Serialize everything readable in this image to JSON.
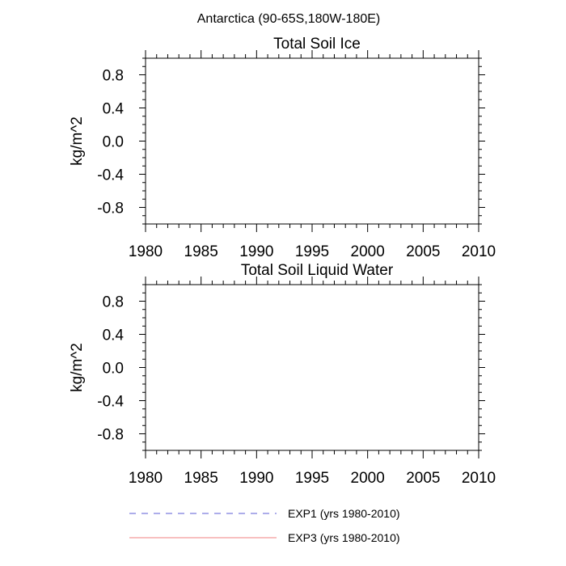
{
  "figure_title": "Antarctica (90-65S,180W-180E)",
  "chart_data": [
    {
      "type": "line",
      "title": "Total Soil Ice",
      "xlabel": "",
      "ylabel": "kg/m^2",
      "xlim": [
        1980,
        2010
      ],
      "ylim": [
        -1.0,
        1.0
      ],
      "x_ticks": [
        1980,
        1985,
        1990,
        1995,
        2000,
        2005,
        2010
      ],
      "x_tick_labels": [
        "1980",
        "1985",
        "1990",
        "1995",
        "2000",
        "2005",
        "2010"
      ],
      "y_ticks": [
        0.8,
        0.4,
        0.0,
        -0.4,
        -0.8
      ],
      "y_tick_labels": [
        "0.8",
        "0.4",
        "0.0",
        "-0.4",
        "-0.8"
      ],
      "grid": false,
      "series": [
        {
          "name": "EXP1 (yrs 1980-2010)",
          "values": []
        },
        {
          "name": "EXP3 (yrs 1980-2010)",
          "values": []
        }
      ]
    },
    {
      "type": "line",
      "title": "Total Soil Liquid Water",
      "xlabel": "",
      "ylabel": "kg/m^2",
      "xlim": [
        1980,
        2010
      ],
      "ylim": [
        -1.0,
        1.0
      ],
      "x_ticks": [
        1980,
        1985,
        1990,
        1995,
        2000,
        2005,
        2010
      ],
      "x_tick_labels": [
        "1980",
        "1985",
        "1990",
        "1995",
        "2000",
        "2005",
        "2010"
      ],
      "y_ticks": [
        0.8,
        0.4,
        0.0,
        -0.4,
        -0.8
      ],
      "y_tick_labels": [
        "0.8",
        "0.4",
        "0.0",
        "-0.4",
        "-0.8"
      ],
      "grid": false,
      "series": [
        {
          "name": "EXP1 (yrs 1980-2010)",
          "values": []
        },
        {
          "name": "EXP3 (yrs 1980-2010)",
          "values": []
        }
      ]
    }
  ],
  "legend": {
    "placement": "bottom",
    "entries": [
      {
        "label": "EXP1 (yrs 1980-2010)",
        "color": "#5b5bd6",
        "style": "dashed"
      },
      {
        "label": "EXP3 (yrs 1980-2010)",
        "color": "#f08080",
        "style": "solid"
      }
    ]
  }
}
